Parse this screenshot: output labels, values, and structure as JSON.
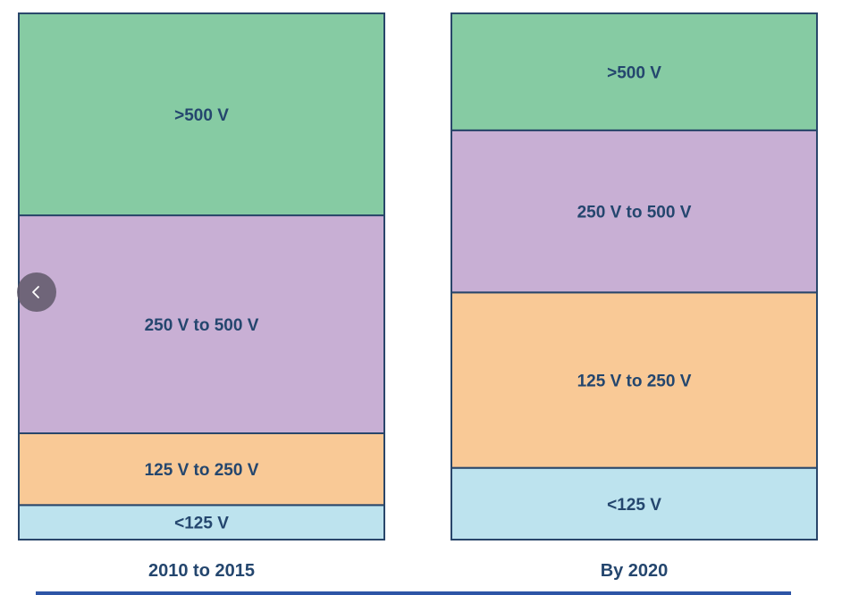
{
  "chart_data": {
    "type": "bar",
    "stacked": true,
    "normalized": true,
    "title": "",
    "xlabel": "",
    "ylabel": "",
    "categories": [
      "2010 to 2015",
      "By 2020"
    ],
    "series": [
      {
        "name": "<125 V",
        "color": "#bde3ee",
        "values": [
          0.065,
          0.135
        ]
      },
      {
        "name": "125 V to 250 V",
        "color": "#f9c996",
        "values": [
          0.135,
          0.33
        ]
      },
      {
        "name": "250 V to 500 V",
        "color": "#c8afd4",
        "values": [
          0.41,
          0.305
        ]
      },
      {
        "name": ">500 V",
        "color": "#86cba3",
        "values": [
          0.38,
          0.22
        ]
      }
    ],
    "grid": false,
    "legend": "none"
  },
  "ui": {
    "prev_button_icon": "chevron-left-icon",
    "colors": {
      "border": "#29466a",
      "text": "#24466e",
      "nav_bg": "#5f5869",
      "strip": "#2d55a6"
    }
  }
}
